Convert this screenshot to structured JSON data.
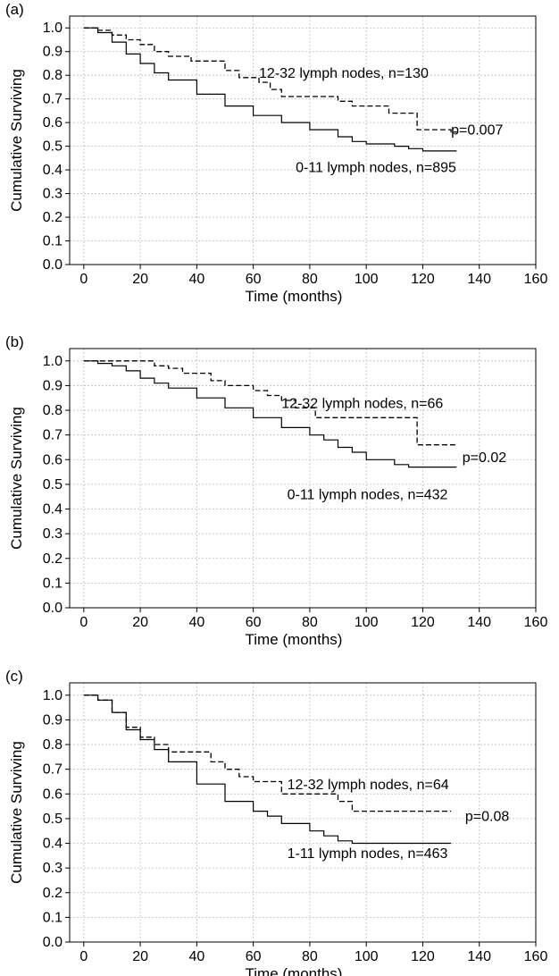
{
  "chart_data": [
    {
      "type": "line",
      "panel_label": "(a)",
      "xlabel": "Time (months)",
      "ylabel": "Cumulative Surviving",
      "xlim": [
        -5,
        160
      ],
      "ylim": [
        0,
        1.05
      ],
      "xticks": [
        "0",
        "20",
        "40",
        "60",
        "80",
        "100",
        "120",
        "140",
        "160"
      ],
      "yticks": [
        "0.0",
        "0.1",
        "0.2",
        "0.3",
        "0.4",
        "0.5",
        "0.6",
        "0.7",
        "0.8",
        "0.9",
        "1.0"
      ],
      "grid": true,
      "series": [
        {
          "style": "dashed",
          "x": [
            0,
            5,
            10,
            15,
            20,
            25,
            30,
            38,
            45,
            50,
            55,
            62,
            66,
            70,
            80,
            90,
            95,
            98,
            108,
            116,
            118,
            125,
            130,
            132
          ],
          "y": [
            1.0,
            0.99,
            0.97,
            0.95,
            0.93,
            0.9,
            0.88,
            0.86,
            0.86,
            0.82,
            0.79,
            0.77,
            0.74,
            0.71,
            0.71,
            0.69,
            0.67,
            0.67,
            0.64,
            0.64,
            0.57,
            0.57,
            0.56,
            0.56
          ]
        },
        {
          "style": "solid",
          "x": [
            0,
            5,
            10,
            15,
            20,
            25,
            30,
            40,
            50,
            60,
            70,
            80,
            90,
            95,
            100,
            110,
            115,
            120,
            125,
            132
          ],
          "y": [
            1.0,
            0.98,
            0.94,
            0.89,
            0.85,
            0.81,
            0.78,
            0.72,
            0.67,
            0.63,
            0.6,
            0.57,
            0.54,
            0.52,
            0.51,
            0.5,
            0.49,
            0.48,
            0.48,
            0.48
          ]
        }
      ],
      "annotations": [
        {
          "text": "12-32 lymph nodes, n=130",
          "x": 62,
          "y": 0.79
        },
        {
          "text": "p=0.007",
          "x": 130,
          "y": 0.55
        },
        {
          "text": "0-11 lymph nodes, n=895",
          "x": 75,
          "y": 0.39
        }
      ]
    },
    {
      "type": "line",
      "panel_label": "(b)",
      "xlabel": "Time (months)",
      "ylabel": "Cumulative Surviving",
      "xlim": [
        -5,
        160
      ],
      "ylim": [
        0,
        1.05
      ],
      "xticks": [
        "0",
        "20",
        "40",
        "60",
        "80",
        "100",
        "120",
        "140",
        "160"
      ],
      "yticks": [
        "0.0",
        "0.1",
        "0.2",
        "0.3",
        "0.4",
        "0.5",
        "0.6",
        "0.7",
        "0.8",
        "0.9",
        "1.0"
      ],
      "grid": true,
      "series": [
        {
          "style": "dashed",
          "x": [
            0,
            10,
            20,
            25,
            30,
            35,
            40,
            45,
            50,
            55,
            60,
            65,
            70,
            75,
            80,
            82,
            90,
            100,
            110,
            118,
            120,
            130,
            132
          ],
          "y": [
            1.0,
            1.0,
            1.0,
            0.98,
            0.97,
            0.95,
            0.95,
            0.92,
            0.9,
            0.9,
            0.88,
            0.86,
            0.84,
            0.81,
            0.81,
            0.77,
            0.77,
            0.77,
            0.77,
            0.66,
            0.66,
            0.66,
            0.66
          ]
        },
        {
          "style": "solid",
          "x": [
            0,
            5,
            10,
            15,
            20,
            25,
            30,
            40,
            50,
            60,
            70,
            80,
            85,
            90,
            95,
            100,
            110,
            115,
            120,
            132
          ],
          "y": [
            1.0,
            0.99,
            0.98,
            0.96,
            0.93,
            0.91,
            0.89,
            0.85,
            0.81,
            0.77,
            0.73,
            0.7,
            0.68,
            0.65,
            0.63,
            0.6,
            0.58,
            0.57,
            0.57,
            0.57
          ]
        }
      ],
      "annotations": [
        {
          "text": "12-32 lymph nodes, n=66",
          "x": 70,
          "y": 0.81
        },
        {
          "text": "p=0.02",
          "x": 134,
          "y": 0.59
        },
        {
          "text": "0-11 lymph nodes, n=432",
          "x": 72,
          "y": 0.44
        }
      ]
    },
    {
      "type": "line",
      "panel_label": "(c)",
      "xlabel": "Time (months)",
      "ylabel": "Cumulative Surviving",
      "xlim": [
        -5,
        160
      ],
      "ylim": [
        0,
        1.05
      ],
      "xticks": [
        "0",
        "20",
        "40",
        "60",
        "80",
        "100",
        "120",
        "140",
        "160"
      ],
      "yticks": [
        "0.0",
        "0.1",
        "0.2",
        "0.3",
        "0.4",
        "0.5",
        "0.6",
        "0.7",
        "0.8",
        "0.9",
        "1.0"
      ],
      "grid": true,
      "series": [
        {
          "style": "dashed",
          "x": [
            0,
            5,
            10,
            15,
            20,
            25,
            30,
            35,
            45,
            50,
            55,
            60,
            65,
            70,
            75,
            85,
            90,
            95,
            100,
            110,
            120,
            130
          ],
          "y": [
            1.0,
            0.98,
            0.93,
            0.87,
            0.83,
            0.8,
            0.77,
            0.77,
            0.73,
            0.7,
            0.67,
            0.65,
            0.65,
            0.6,
            0.6,
            0.6,
            0.57,
            0.53,
            0.53,
            0.53,
            0.53,
            0.53
          ]
        },
        {
          "style": "solid",
          "x": [
            0,
            5,
            10,
            15,
            20,
            25,
            30,
            40,
            50,
            60,
            65,
            70,
            80,
            85,
            90,
            95,
            100,
            110,
            120,
            130
          ],
          "y": [
            1.0,
            0.98,
            0.93,
            0.86,
            0.82,
            0.78,
            0.73,
            0.64,
            0.57,
            0.53,
            0.51,
            0.48,
            0.45,
            0.43,
            0.41,
            0.4,
            0.4,
            0.4,
            0.4,
            0.4
          ]
        }
      ],
      "annotations": [
        {
          "text": "12-32 lymph nodes, n=64",
          "x": 72,
          "y": 0.62
        },
        {
          "text": "p=0.08",
          "x": 135,
          "y": 0.49
        },
        {
          "text": "1-11 lymph nodes, n=463",
          "x": 72,
          "y": 0.34
        }
      ]
    }
  ]
}
